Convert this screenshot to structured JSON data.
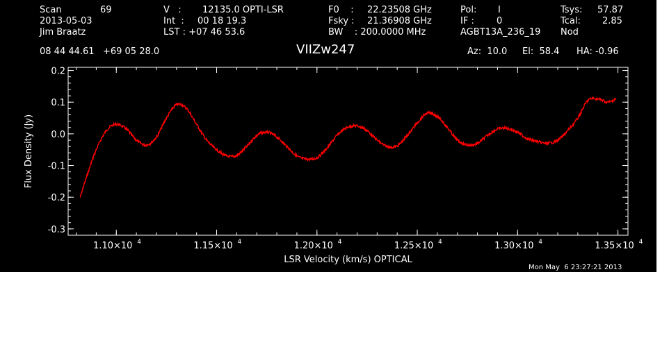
{
  "header": {
    "row1": {
      "scan_label": "Scan",
      "scan_value": "69",
      "v_label": "V   :",
      "v_value": "12135.0 OPTI-LSR",
      "f0_label": "F0    :",
      "f0_value": "22.23508 GHz",
      "pol_label": "Pol:",
      "pol_value": "I",
      "tsys_label": "Tsys:",
      "tsys_value": "57.87"
    },
    "row2": {
      "date": "2013-05-03",
      "int_label": "Int  :",
      "int_value": "00 18 19.3",
      "fsky_label": "Fsky :",
      "fsky_value": "21.36908 GHz",
      "if_label": "IF :",
      "if_value": "0",
      "tcal_label": "Tcal:",
      "tcal_value": "2.85"
    },
    "row3": {
      "observer": "Jim Braatz",
      "lst_label": "LST : +07 46 53.6",
      "bw_label": "BW    : 200.0000 MHz",
      "project": "AGBT13A_236_19",
      "proc": "Nod"
    },
    "row4": {
      "coords": "08 44 44.61   +69 05 28.0",
      "source": "VIIZw247",
      "az": "Az:  10.0",
      "el": "El:  58.4",
      "ha": "HA: -0.96"
    },
    "timestamp": "Mon May  6 23:27:21 2013"
  },
  "colors": {
    "background": "#000000",
    "foreground": "#ffffff",
    "series": "#ff0000"
  },
  "chart_data": {
    "type": "line",
    "xlabel": "LSR Velocity (km/s) OPTICAL",
    "ylabel": "Flux Density (Jy)",
    "xlim": [
      10760,
      13550
    ],
    "ylim": [
      -0.32,
      0.21
    ],
    "x_ticks": [
      {
        "value": 11000,
        "mant": "1.10×10",
        "exp": "4"
      },
      {
        "value": 11500,
        "mant": "1.15×10",
        "exp": "4"
      },
      {
        "value": 12000,
        "mant": "1.20×10",
        "exp": "4"
      },
      {
        "value": 12500,
        "mant": "1.25×10",
        "exp": "4"
      },
      {
        "value": 13000,
        "mant": "1.30×10",
        "exp": "4"
      },
      {
        "value": 13500,
        "mant": "1.35×10",
        "exp": "4"
      }
    ],
    "y_ticks": [
      {
        "value": 0.2,
        "label": "0.2"
      },
      {
        "value": 0.1,
        "label": "0.1"
      },
      {
        "value": 0.0,
        "label": "0.0"
      },
      {
        "value": -0.1,
        "label": "-0.1"
      },
      {
        "value": -0.2,
        "label": "-0.2"
      },
      {
        "value": -0.3,
        "label": "-0.3"
      }
    ],
    "series": [
      {
        "x": [
          10820,
          10860,
          10900,
          10950,
          11000,
          11050,
          11100,
          11150,
          11200,
          11250,
          11300,
          11350,
          11400,
          11450,
          11500,
          11550,
          11600,
          11650,
          11700,
          11750,
          11800,
          11850,
          11900,
          11950,
          12000,
          12050,
          12100,
          12150,
          12200,
          12250,
          12300,
          12350,
          12400,
          12450,
          12500,
          12550,
          12600,
          12650,
          12700,
          12750,
          12800,
          12850,
          12900,
          12950,
          13000,
          13050,
          13100,
          13150,
          13200,
          13250,
          13300,
          13350,
          13400,
          13450,
          13490
        ],
        "y": [
          -0.2,
          -0.12,
          -0.05,
          0.01,
          0.03,
          0.015,
          -0.02,
          -0.035,
          -0.01,
          0.05,
          0.092,
          0.08,
          0.03,
          -0.02,
          -0.05,
          -0.07,
          -0.068,
          -0.04,
          -0.005,
          0.005,
          -0.01,
          -0.04,
          -0.07,
          -0.08,
          -0.075,
          -0.045,
          -0.005,
          0.02,
          0.025,
          0.01,
          -0.02,
          -0.04,
          -0.038,
          -0.005,
          0.035,
          0.065,
          0.055,
          0.02,
          -0.02,
          -0.035,
          -0.03,
          -0.005,
          0.015,
          0.017,
          0.005,
          -0.015,
          -0.025,
          -0.03,
          -0.02,
          0.01,
          0.05,
          0.105,
          0.11,
          0.1,
          0.11
        ]
      }
    ]
  }
}
